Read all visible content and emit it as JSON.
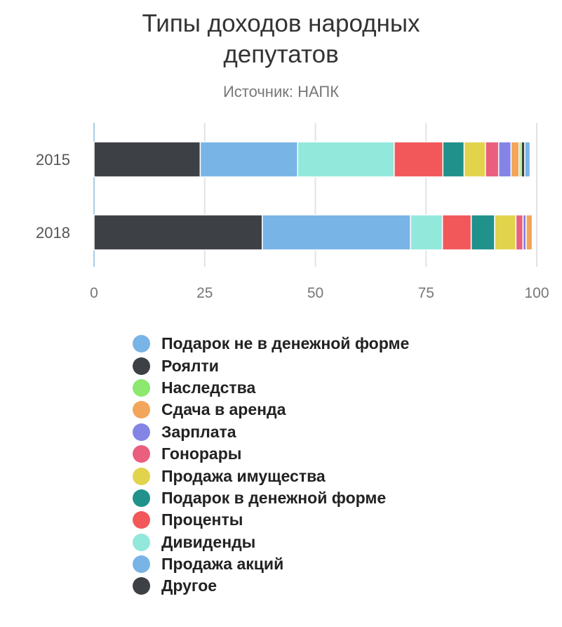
{
  "chart_data": {
    "type": "bar",
    "orientation": "horizontal",
    "stacked": true,
    "title": "Типы доходов народных депутатов",
    "subtitle": "Источник: НАПК",
    "categories": [
      "2015",
      "2018"
    ],
    "xlim": [
      0,
      100
    ],
    "xticks": [
      "0",
      "25",
      "50",
      "75",
      "100"
    ],
    "grid": true,
    "legend_position": "bottom",
    "series": [
      {
        "name": "Другое",
        "color": "#3d4044",
        "values": [
          24,
          38
        ]
      },
      {
        "name": "Продажа акций",
        "color": "#79b4e6",
        "values": [
          22,
          33.5
        ]
      },
      {
        "name": "Дивиденды",
        "color": "#93e8dc",
        "values": [
          21.8,
          7.2
        ]
      },
      {
        "name": "Проценты",
        "color": "#f2585a",
        "values": [
          11,
          6.5
        ]
      },
      {
        "name": "Подарок в денежной форме",
        "color": "#21918c",
        "values": [
          4.8,
          5.3
        ]
      },
      {
        "name": "Продажа имущества",
        "color": "#e2d34d",
        "values": [
          4.8,
          4.8
        ]
      },
      {
        "name": "Гонорары",
        "color": "#ea5f7e",
        "values": [
          3,
          1.6
        ]
      },
      {
        "name": "Зарплата",
        "color": "#8384e4",
        "values": [
          2.8,
          0.7
        ]
      },
      {
        "name": "Сдача в аренда",
        "color": "#f2a55b",
        "values": [
          1.8,
          1.4
        ]
      },
      {
        "name": "Наследства",
        "color": "#8ce86f",
        "values": [
          0.5,
          0.1
        ]
      },
      {
        "name": "Роялти",
        "color": "#3d4044",
        "values": [
          0.8,
          0.1
        ]
      },
      {
        "name": "Подарок не в денежной форме",
        "color": "#79b4e6",
        "values": [
          1.2,
          0.2
        ]
      }
    ],
    "legend": [
      {
        "name": "Подарок не в денежной форме",
        "color": "#79b4e6"
      },
      {
        "name": "Роялти",
        "color": "#3d4044"
      },
      {
        "name": "Наследства",
        "color": "#8ce86f"
      },
      {
        "name": "Сдача в аренда",
        "color": "#f2a55b"
      },
      {
        "name": "Зарплата",
        "color": "#8384e4"
      },
      {
        "name": "Гонорары",
        "color": "#ea5f7e"
      },
      {
        "name": "Продажа имущества",
        "color": "#e2d34d"
      },
      {
        "name": "Подарок в денежной форме",
        "color": "#21918c"
      },
      {
        "name": "Проценты",
        "color": "#f2585a"
      },
      {
        "name": "Дивиденды",
        "color": "#93e8dc"
      },
      {
        "name": "Продажа акций",
        "color": "#79b4e6"
      },
      {
        "name": "Другое",
        "color": "#3d4044"
      }
    ]
  }
}
